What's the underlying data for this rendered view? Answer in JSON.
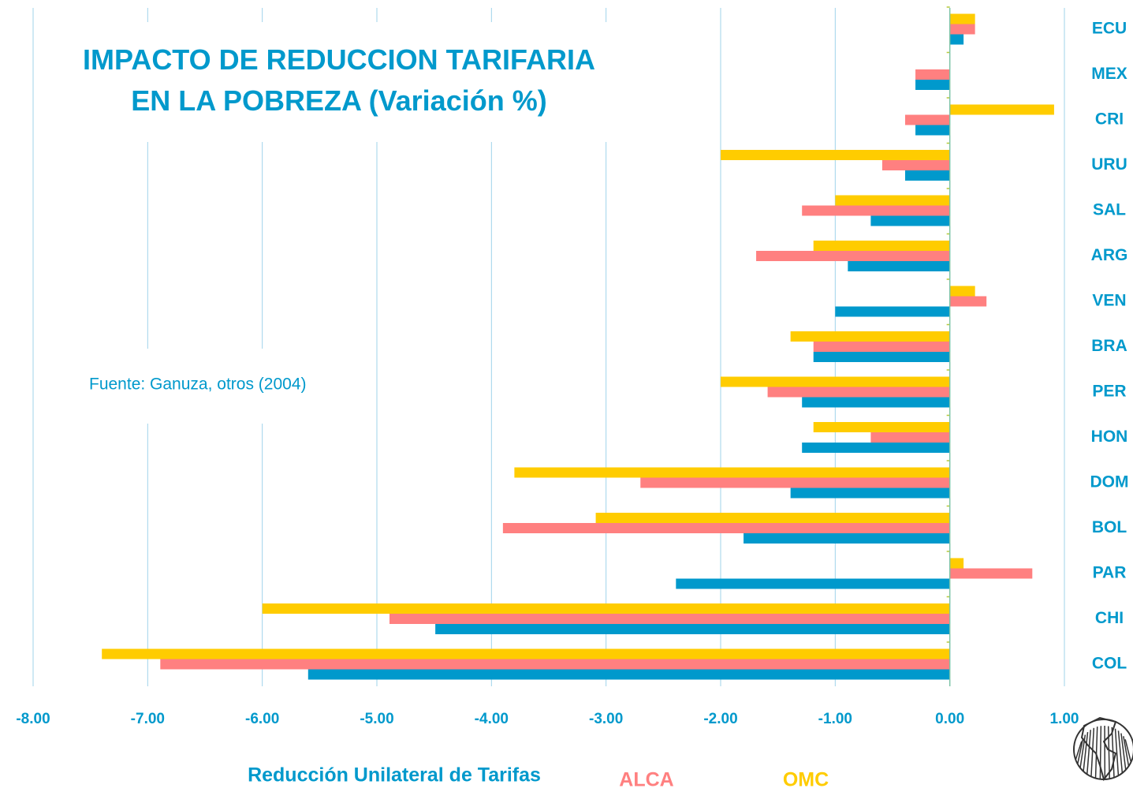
{
  "chart_data": {
    "type": "hbar",
    "title": [
      "IMPACTO DE REDUCCION TARIFARIA",
      "EN LA POBREZA (Variación %)"
    ],
    "annotation": "Fuente: Ganuza, otros (2004)",
    "categories": [
      "ECU",
      "MEX",
      "CRI",
      "URU",
      "SAL",
      "ARG",
      "VEN",
      "BRA",
      "PER",
      "HON",
      "DOM",
      "BOL",
      "PAR",
      "CHI",
      "COL"
    ],
    "series": [
      {
        "name": "OMC",
        "color": "#ffcc00",
        "values": [
          0.22,
          0,
          0.91,
          -2.0,
          -1.0,
          -1.19,
          0.22,
          -1.39,
          -2.0,
          -1.19,
          -3.8,
          -3.09,
          0.12,
          -6.0,
          -7.4
        ]
      },
      {
        "name": "ALCA",
        "color": "#ff8080",
        "values": [
          0.22,
          -0.3,
          -0.39,
          -0.59,
          -1.29,
          -1.69,
          0.32,
          -1.19,
          -1.59,
          -0.69,
          -2.7,
          -3.9,
          0.72,
          -4.89,
          -6.89
        ]
      },
      {
        "name": "Reducción Unilateral de Tarifas",
        "color": "#0099cc",
        "values": [
          0.12,
          -0.3,
          -0.3,
          -0.39,
          -0.69,
          -0.89,
          -1.0,
          -1.19,
          -1.29,
          -1.29,
          -1.39,
          -1.8,
          -2.39,
          -4.49,
          -5.6
        ]
      }
    ],
    "xlim": [
      -8,
      1
    ],
    "xticks": [
      {
        "value": -8,
        "label": "-8.00"
      },
      {
        "value": -7,
        "label": "-7.00"
      },
      {
        "value": -6,
        "label": "-6.00"
      },
      {
        "value": -5,
        "label": "-5.00"
      },
      {
        "value": -4,
        "label": "-4.00"
      },
      {
        "value": -3,
        "label": "-3.00"
      },
      {
        "value": -2,
        "label": "-2.00"
      },
      {
        "value": -1,
        "label": "-1.00"
      },
      {
        "value": 0,
        "label": "0.00"
      },
      {
        "value": 1,
        "label": "1.00"
      }
    ],
    "grid": true
  }
}
